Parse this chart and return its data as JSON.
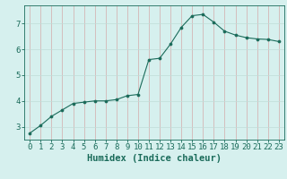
{
  "x": [
    0,
    1,
    2,
    3,
    4,
    5,
    6,
    7,
    8,
    9,
    10,
    11,
    12,
    13,
    14,
    15,
    16,
    17,
    18,
    19,
    20,
    21,
    22,
    23
  ],
  "y": [
    2.75,
    3.05,
    3.4,
    3.65,
    3.9,
    3.95,
    4.0,
    4.0,
    4.05,
    4.2,
    4.25,
    5.6,
    5.65,
    6.2,
    6.85,
    7.3,
    7.35,
    7.05,
    6.7,
    6.55,
    6.45,
    6.4,
    6.38,
    6.3
  ],
  "line_color": "#1a6b5a",
  "marker": "o",
  "marker_size": 2.2,
  "bg_color": "#d6f0ee",
  "grid_color": "#c0ddd8",
  "grid_color2": "#d4aaaa",
  "xlabel": "Humidex (Indice chaleur)",
  "xlabel_fontsize": 7.5,
  "ylabel_ticks": [
    3,
    4,
    5,
    6,
    7
  ],
  "xlim": [
    -0.5,
    23.5
  ],
  "ylim": [
    2.5,
    7.7
  ],
  "tick_fontsize": 6.5,
  "spine_color": "#1a6b5a",
  "text_color": "#1a6b5a"
}
